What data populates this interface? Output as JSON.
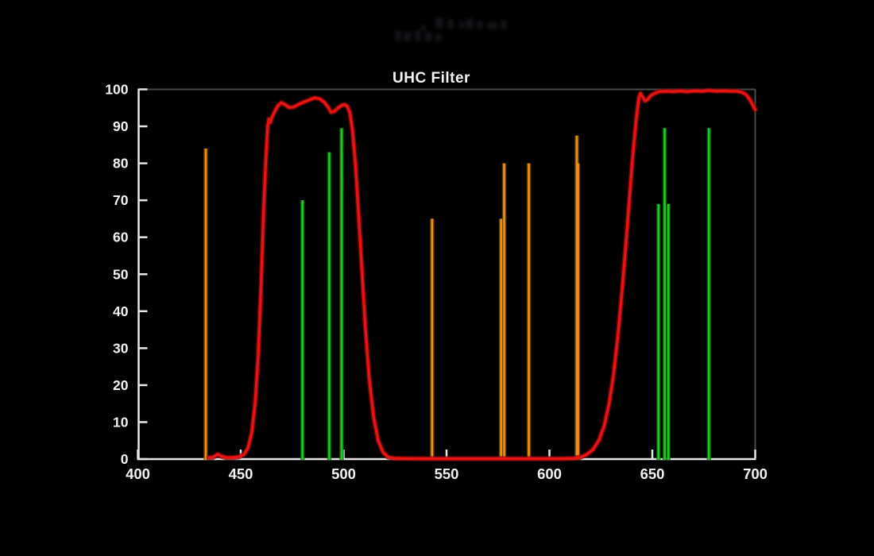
{
  "title": "UHC Filter",
  "colors": {
    "background": "#000000",
    "curve_red": "#e81414",
    "curve_red_glow": "#8a0505",
    "line_orange": "#f0920e",
    "line_orange_glow": "#7a4a06",
    "line_green": "#22c822",
    "line_green_glow": "#0b6b0b",
    "axis_white": "#e6e6e6",
    "border_gray": "#4a4a4a",
    "label_white": "#f2f2f2"
  },
  "faint_top_marks": {
    "description": "illegible very dark smudged text near top center",
    "rects": [
      [
        548,
        22,
        10,
        14
      ],
      [
        563,
        24,
        8,
        12
      ],
      [
        578,
        26,
        6,
        10
      ],
      [
        586,
        24,
        10,
        12
      ],
      [
        600,
        26,
        8,
        10
      ],
      [
        613,
        28,
        14,
        9
      ],
      [
        630,
        25,
        8,
        12
      ],
      [
        497,
        38,
        8,
        14
      ],
      [
        508,
        40,
        10,
        12
      ],
      [
        522,
        38,
        8,
        14
      ],
      [
        534,
        40,
        10,
        12
      ],
      [
        548,
        42,
        8,
        10
      ],
      [
        530,
        31,
        6,
        8
      ]
    ]
  },
  "chart_data": {
    "type": "line",
    "title": "UHC Filter",
    "xlabel": "",
    "ylabel": "",
    "xlim": [
      400,
      700
    ],
    "ylim": [
      0,
      100
    ],
    "x_ticks": [
      400,
      450,
      500,
      550,
      600,
      650,
      700
    ],
    "y_ticks": [
      0,
      10,
      20,
      30,
      40,
      50,
      60,
      70,
      80,
      90,
      100
    ],
    "grid": false,
    "legend": "none",
    "series": [
      {
        "name": "UHC filter transmission curve",
        "color": "red",
        "points": [
          [
            434.5,
            0.4
          ],
          [
            436.5,
            0.5
          ],
          [
            438.8,
            1.3
          ],
          [
            440.5,
            0.8
          ],
          [
            443,
            0.4
          ],
          [
            446,
            0.4
          ],
          [
            449,
            0.6
          ],
          [
            451.5,
            1.2
          ],
          [
            453.5,
            3
          ],
          [
            455.3,
            7
          ],
          [
            457,
            15
          ],
          [
            458.5,
            28
          ],
          [
            459.9,
            47
          ],
          [
            461.1,
            67
          ],
          [
            462.2,
            81
          ],
          [
            463.1,
            90
          ],
          [
            463.7,
            92
          ],
          [
            464.3,
            91
          ],
          [
            465.2,
            92.5
          ],
          [
            466.5,
            94
          ],
          [
            468,
            95.5
          ],
          [
            469.7,
            96.4
          ],
          [
            471.5,
            95.9
          ],
          [
            473.4,
            95.1
          ],
          [
            475.6,
            95.2
          ],
          [
            478,
            95.9
          ],
          [
            480.8,
            96.6
          ],
          [
            483.6,
            97.2
          ],
          [
            486,
            97.7
          ],
          [
            488.4,
            97.4
          ],
          [
            490.6,
            96.5
          ],
          [
            492.4,
            95.2
          ],
          [
            493.9,
            93.8
          ],
          [
            495.4,
            94
          ],
          [
            497.3,
            95
          ],
          [
            499.2,
            95.7
          ],
          [
            500.5,
            95.9
          ],
          [
            501.9,
            95.3
          ],
          [
            503.1,
            93.5
          ],
          [
            504.3,
            89
          ],
          [
            505.7,
            80
          ],
          [
            507.2,
            67
          ],
          [
            508.8,
            52
          ],
          [
            510.5,
            36
          ],
          [
            512.4,
            22
          ],
          [
            514.5,
            11.5
          ],
          [
            516.8,
            5
          ],
          [
            519.2,
            1.8
          ],
          [
            521.5,
            0.6
          ],
          [
            524.5,
            0.2
          ],
          [
            535,
            0.1
          ],
          [
            550,
            0.1
          ],
          [
            570,
            0.1
          ],
          [
            590,
            0.1
          ],
          [
            605,
            0.1
          ],
          [
            612,
            0.2
          ],
          [
            615,
            0.5
          ],
          [
            618,
            1.2
          ],
          [
            621,
            2.5
          ],
          [
            624,
            5
          ],
          [
            626.6,
            9
          ],
          [
            629,
            15
          ],
          [
            631.2,
            23
          ],
          [
            633.2,
            33
          ],
          [
            635.2,
            45
          ],
          [
            637,
            57
          ],
          [
            638.7,
            69
          ],
          [
            640.2,
            80
          ],
          [
            641.5,
            88
          ],
          [
            642.6,
            94
          ],
          [
            643.5,
            97.8
          ],
          [
            644.3,
            98.9
          ],
          [
            645.3,
            98
          ],
          [
            646.4,
            96.9
          ],
          [
            647.6,
            97.2
          ],
          [
            649.2,
            98.3
          ],
          [
            651.2,
            99
          ],
          [
            653.5,
            99.4
          ],
          [
            656.5,
            99.5
          ],
          [
            660,
            99.4
          ],
          [
            663.5,
            99.6
          ],
          [
            667,
            99.4
          ],
          [
            670.5,
            99.6
          ],
          [
            674,
            99.5
          ],
          [
            677.5,
            99.7
          ],
          [
            681,
            99.5
          ],
          [
            684.5,
            99.6
          ],
          [
            688,
            99.5
          ],
          [
            691,
            99.5
          ],
          [
            693.5,
            99.2
          ],
          [
            695.5,
            98.6
          ],
          [
            697.2,
            97.4
          ],
          [
            698.6,
            96
          ],
          [
            700,
            94.5
          ]
        ]
      }
    ],
    "emission_lines": [
      {
        "wavelength_nm": 433,
        "height": 84,
        "color": "orange"
      },
      {
        "wavelength_nm": 480,
        "height": 70,
        "color": "green"
      },
      {
        "wavelength_nm": 493,
        "height": 83,
        "color": "green"
      },
      {
        "wavelength_nm": 499,
        "height": 89.5,
        "color": "green"
      },
      {
        "wavelength_nm": 543,
        "height": 65,
        "color": "orange"
      },
      {
        "wavelength_nm": 576.5,
        "height": 65,
        "color": "orange"
      },
      {
        "wavelength_nm": 578,
        "height": 80,
        "color": "orange"
      },
      {
        "wavelength_nm": 590,
        "height": 80,
        "color": "orange"
      },
      {
        "wavelength_nm": 613.3,
        "height": 87.5,
        "color": "orange"
      },
      {
        "wavelength_nm": 613.9,
        "height": 80,
        "color": "orange"
      },
      {
        "wavelength_nm": 653,
        "height": 69,
        "color": "green"
      },
      {
        "wavelength_nm": 656,
        "height": 89.5,
        "color": "green"
      },
      {
        "wavelength_nm": 657.8,
        "height": 69,
        "color": "green"
      },
      {
        "wavelength_nm": 677.5,
        "height": 89.5,
        "color": "green"
      }
    ]
  }
}
